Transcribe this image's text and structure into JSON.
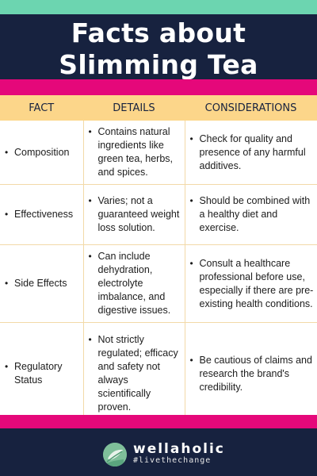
{
  "title_line1": "Facts about",
  "title_line2": "Slimming Tea",
  "table": {
    "headers": [
      "FACT",
      "DETAILS",
      "CONSIDERATIONS"
    ],
    "rows": [
      {
        "fact": "Composition",
        "details": "Contains natural ingredients like green tea, herbs, and spices.",
        "considerations": "Check for quality and presence of any harmful additives."
      },
      {
        "fact": "Effectiveness",
        "details": "Varies; not a guaranteed weight loss solution.",
        "considerations": "Should be combined with a healthy diet and exercise."
      },
      {
        "fact": "Side Effects",
        "details": "Can include dehydration, electrolyte imbalance, and digestive issues.",
        "considerations": "Consult a healthcare professional before use, especially if there are pre-existing health conditions."
      },
      {
        "fact": "Regulatory Status",
        "details": "Not strictly regulated; efficacy and safety not always scientifically proven.",
        "considerations": "Be cautious of claims and research the brand's credibility."
      }
    ]
  },
  "footer": {
    "brand": "wellaholic",
    "tagline": "#livethechange",
    "logo_icon": "leaf-logo-icon"
  },
  "colors": {
    "navy": "#17223f",
    "pink": "#e5087a",
    "mint": "#6cd5b0",
    "header_yellow": "#fcd68a"
  }
}
